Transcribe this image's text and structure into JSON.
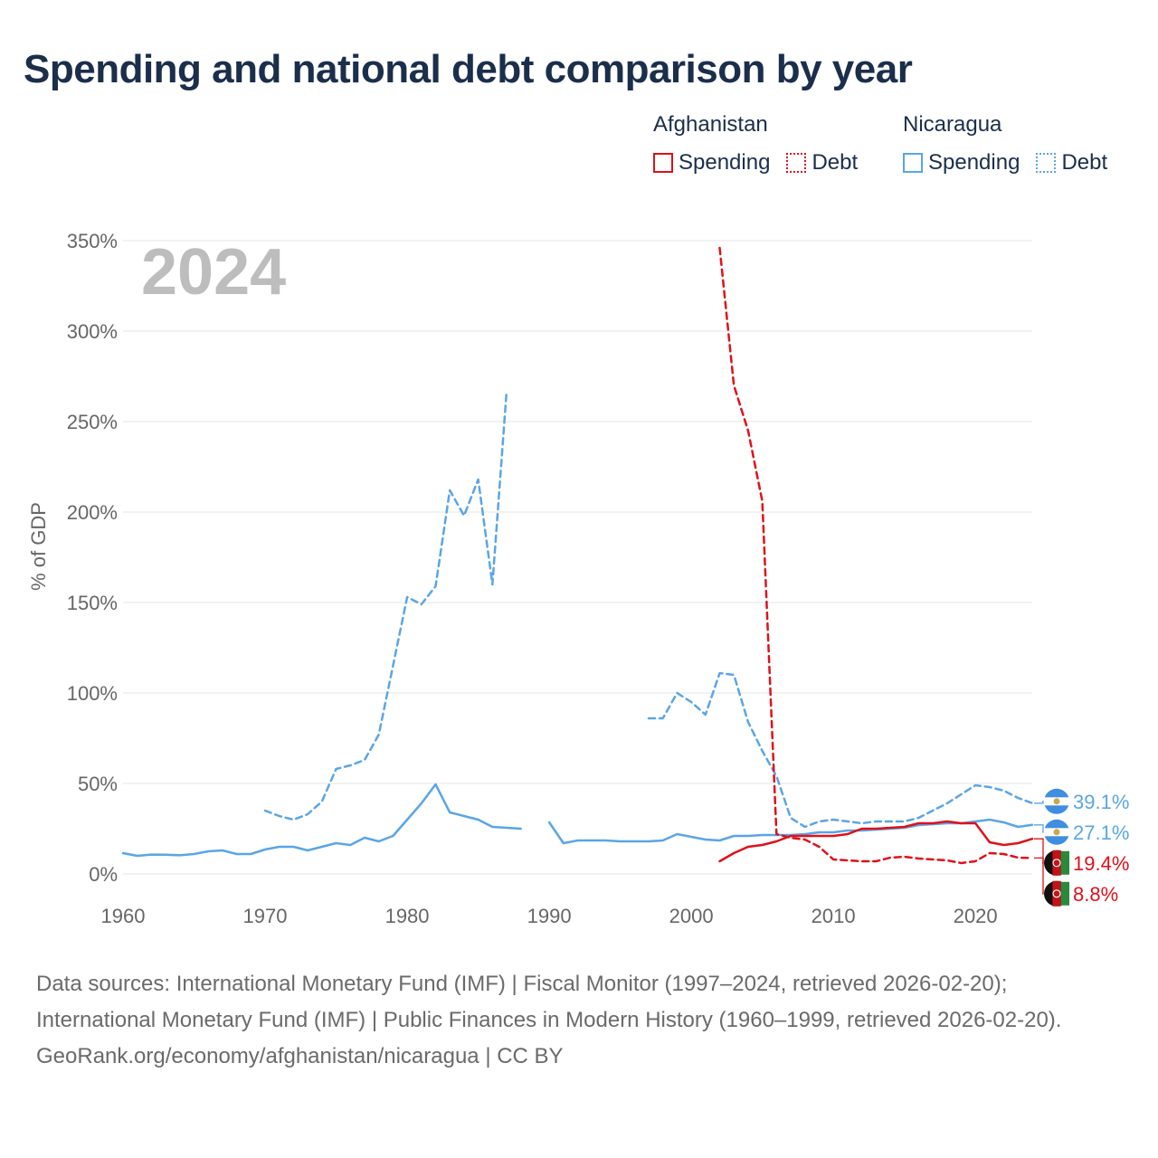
{
  "title": "Spending and national debt comparison by year",
  "legend": {
    "groups": [
      {
        "country": "Afghanistan",
        "color": "#e0101a",
        "spending_label": "Spending",
        "debt_label": "Debt"
      },
      {
        "country": "Nicaragua",
        "color": "#5aa5e6",
        "spending_label": "Spending",
        "debt_label": "Debt"
      }
    ]
  },
  "footer": {
    "sources": "Data sources: International Monetary Fund (IMF) | Fiscal Monitor (1997–2024, retrieved 2026-02-20); International Monetary Fund (IMF) | Public Finances in Modern History (1960–1999, retrieved 2026-02-20).",
    "credit": "GeoRank.org/economy/afghanistan/nicaragua | CC BY"
  },
  "chart_data": {
    "type": "line",
    "year_label": "2024",
    "ylabel": "% of GDP",
    "xlabel": "",
    "xlim": [
      1960,
      2024
    ],
    "ylim": [
      0,
      350
    ],
    "x_ticks": [
      1960,
      1970,
      1980,
      1990,
      2000,
      2010,
      2020
    ],
    "y_ticks": [
      0,
      50,
      100,
      150,
      200,
      250,
      300,
      350
    ],
    "y_tick_labels": [
      "0%",
      "50%",
      "100%",
      "150%",
      "200%",
      "250%",
      "300%",
      "350%"
    ],
    "x_tick_labels": [
      "1960",
      "1970",
      "1980",
      "1990",
      "2000",
      "2010",
      "2020"
    ],
    "grid": true,
    "series": [
      {
        "name": "Nicaragua Debt",
        "country": "Nicaragua",
        "kind": "debt",
        "color": "#5aa5e6",
        "dashed": true,
        "end_label": "39.1%",
        "points": [
          [
            1970,
            35
          ],
          [
            1971,
            32
          ],
          [
            1972,
            30
          ],
          [
            1973,
            33
          ],
          [
            1974,
            40
          ],
          [
            1975,
            58
          ],
          [
            1976,
            60
          ],
          [
            1977,
            63
          ],
          [
            1978,
            77
          ],
          [
            1979,
            115
          ],
          [
            1980,
            153
          ],
          [
            1981,
            149
          ],
          [
            1982,
            159
          ],
          [
            1983,
            212
          ],
          [
            1984,
            198
          ],
          [
            1985,
            218
          ],
          [
            1986,
            160
          ],
          [
            1987,
            267
          ],
          [
            1997,
            86
          ],
          [
            1998,
            86
          ],
          [
            1999,
            100
          ],
          [
            2000,
            95
          ],
          [
            2001,
            88
          ],
          [
            2002,
            111
          ],
          [
            2003,
            110
          ],
          [
            2004,
            84
          ],
          [
            2005,
            68
          ],
          [
            2006,
            54
          ],
          [
            2007,
            31
          ],
          [
            2008,
            26
          ],
          [
            2009,
            29
          ],
          [
            2010,
            30
          ],
          [
            2011,
            29
          ],
          [
            2012,
            28
          ],
          [
            2013,
            29
          ],
          [
            2014,
            29
          ],
          [
            2015,
            29
          ],
          [
            2016,
            31
          ],
          [
            2017,
            35
          ],
          [
            2018,
            39
          ],
          [
            2019,
            44
          ],
          [
            2020,
            49
          ],
          [
            2021,
            48
          ],
          [
            2022,
            46
          ],
          [
            2023,
            42
          ],
          [
            2024,
            39.1
          ]
        ]
      },
      {
        "name": "Nicaragua Spending",
        "country": "Nicaragua",
        "kind": "spending",
        "color": "#5aa5e6",
        "dashed": false,
        "end_label": "27.1%",
        "points": [
          [
            1960,
            11.5
          ],
          [
            1961,
            10
          ],
          [
            1962,
            10.7
          ],
          [
            1963,
            10.6
          ],
          [
            1964,
            10.3
          ],
          [
            1965,
            11
          ],
          [
            1966,
            12.5
          ],
          [
            1967,
            13
          ],
          [
            1968,
            11
          ],
          [
            1969,
            11
          ],
          [
            1970,
            13.5
          ],
          [
            1971,
            15
          ],
          [
            1972,
            15
          ],
          [
            1973,
            13
          ],
          [
            1974,
            15
          ],
          [
            1975,
            17
          ],
          [
            1976,
            16
          ],
          [
            1977,
            20
          ],
          [
            1978,
            18
          ],
          [
            1979,
            21
          ],
          [
            1980,
            30
          ],
          [
            1981,
            39
          ],
          [
            1982,
            49.5
          ],
          [
            1983,
            34
          ],
          [
            1984,
            32
          ],
          [
            1985,
            30
          ],
          [
            1986,
            26
          ],
          [
            1987,
            25.5
          ],
          [
            1988,
            25
          ],
          [
            1990,
            28.5
          ],
          [
            1991,
            17
          ],
          [
            1992,
            18.5
          ],
          [
            1993,
            18.5
          ],
          [
            1994,
            18.5
          ],
          [
            1995,
            18
          ],
          [
            1996,
            18
          ],
          [
            1997,
            18
          ],
          [
            1998,
            18.5
          ],
          [
            1999,
            22
          ],
          [
            2000,
            20.5
          ],
          [
            2001,
            19
          ],
          [
            2002,
            18.5
          ],
          [
            2003,
            21
          ],
          [
            2004,
            21
          ],
          [
            2005,
            21.5
          ],
          [
            2006,
            21.5
          ],
          [
            2007,
            21.5
          ],
          [
            2008,
            22
          ],
          [
            2009,
            23
          ],
          [
            2010,
            23
          ],
          [
            2011,
            24
          ],
          [
            2012,
            24
          ],
          [
            2013,
            24.5
          ],
          [
            2014,
            25
          ],
          [
            2015,
            25.5
          ],
          [
            2016,
            27
          ],
          [
            2017,
            27.5
          ],
          [
            2018,
            28
          ],
          [
            2019,
            28
          ],
          [
            2020,
            29
          ],
          [
            2021,
            30
          ],
          [
            2022,
            28.5
          ],
          [
            2023,
            26
          ],
          [
            2024,
            27.1
          ]
        ]
      },
      {
        "name": "Afghanistan Debt",
        "country": "Afghanistan",
        "kind": "debt",
        "color": "#e0101a",
        "dashed": true,
        "end_label": "8.8%",
        "points": [
          [
            2002,
            346
          ],
          [
            2003,
            270
          ],
          [
            2004,
            245
          ],
          [
            2005,
            206
          ],
          [
            2006,
            22
          ],
          [
            2007,
            20
          ],
          [
            2008,
            19
          ],
          [
            2009,
            15
          ],
          [
            2010,
            8
          ],
          [
            2011,
            7.5
          ],
          [
            2012,
            7
          ],
          [
            2013,
            7
          ],
          [
            2014,
            9
          ],
          [
            2015,
            9.5
          ],
          [
            2016,
            8.5
          ],
          [
            2017,
            8
          ],
          [
            2018,
            7.5
          ],
          [
            2019,
            6
          ],
          [
            2020,
            7
          ],
          [
            2021,
            11.5
          ],
          [
            2022,
            11
          ],
          [
            2023,
            9
          ],
          [
            2024,
            8.8
          ]
        ]
      },
      {
        "name": "Afghanistan Spending",
        "country": "Afghanistan",
        "kind": "spending",
        "color": "#e0101a",
        "dashed": false,
        "end_label": "19.4%",
        "points": [
          [
            2002,
            7
          ],
          [
            2003,
            11.5
          ],
          [
            2004,
            15
          ],
          [
            2005,
            16
          ],
          [
            2006,
            18
          ],
          [
            2007,
            21
          ],
          [
            2008,
            21
          ],
          [
            2009,
            21
          ],
          [
            2010,
            21
          ],
          [
            2011,
            22
          ],
          [
            2012,
            25
          ],
          [
            2013,
            25
          ],
          [
            2014,
            25.5
          ],
          [
            2015,
            26
          ],
          [
            2016,
            28
          ],
          [
            2017,
            28
          ],
          [
            2018,
            29
          ],
          [
            2019,
            28
          ],
          [
            2020,
            28
          ],
          [
            2021,
            17.5
          ],
          [
            2022,
            16
          ],
          [
            2023,
            17
          ],
          [
            2024,
            19.4
          ]
        ]
      }
    ]
  }
}
